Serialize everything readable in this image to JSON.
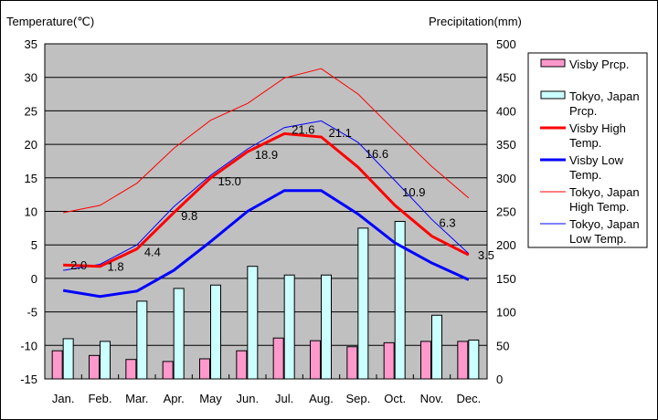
{
  "chart_data": {
    "type": "bar+line",
    "y_left_label": "Temperature(℃)",
    "y_right_label": "Precipitation(mm)",
    "ylim_left": [
      -15,
      35
    ],
    "ylim_right": [
      0,
      500
    ],
    "left_ticks": [
      35,
      30,
      25,
      20,
      15,
      10,
      5,
      0,
      -5,
      -10,
      -15
    ],
    "right_ticks": [
      500,
      450,
      400,
      350,
      300,
      250,
      200,
      150,
      100,
      50,
      0
    ],
    "categories": [
      "Jan.",
      "Feb.",
      "Mar.",
      "Apr.",
      "May",
      "Jun.",
      "Jul.",
      "Aug.",
      "Sep.",
      "Oct.",
      "Nov.",
      "Dec."
    ],
    "bars": [
      {
        "name": "Visby Prcp.",
        "color": "#ff99cc",
        "values": [
          42,
          35,
          29,
          26,
          30,
          42,
          61,
          57,
          48,
          54,
          56,
          56
        ]
      },
      {
        "name": "Tokyo, Japan Prcp.",
        "color": "#ccffff",
        "values": [
          60,
          56,
          116,
          135,
          140,
          168,
          155,
          155,
          225,
          235,
          95,
          58
        ]
      }
    ],
    "lines": [
      {
        "name": "Visby High Temp.",
        "color": "#ff0000",
        "width": 3,
        "values": [
          2.0,
          1.8,
          4.4,
          9.8,
          15.0,
          18.9,
          21.6,
          21.1,
          16.6,
          10.9,
          6.3,
          3.5
        ],
        "labels": [
          "2.0",
          "1.8",
          "4.4",
          "9.8",
          "15.0",
          "18.9",
          "21.6",
          "21.1",
          "16.6",
          "10.9",
          "6.3",
          "3.5"
        ]
      },
      {
        "name": "Visby Low Temp.",
        "color": "#0000ff",
        "width": 3,
        "values": [
          -1.8,
          -2.7,
          -1.9,
          1.2,
          5.5,
          10.0,
          13.1,
          13.1,
          9.6,
          5.3,
          2.3,
          -0.2
        ]
      },
      {
        "name": "Tokyo, Japan High Temp.",
        "color": "#ff0000",
        "width": 1,
        "values": [
          9.8,
          10.9,
          14.2,
          19.4,
          23.6,
          26.1,
          29.9,
          31.3,
          27.5,
          22.0,
          16.7,
          12.0
        ]
      },
      {
        "name": "Tokyo, Japan Low Temp.",
        "color": "#0000ff",
        "width": 1,
        "values": [
          1.2,
          2.1,
          5.0,
          10.7,
          15.4,
          19.3,
          22.5,
          23.5,
          20.3,
          14.6,
          8.8,
          3.7
        ]
      }
    ],
    "legend": [
      {
        "line1": "Visby Prcp.",
        "line2": ""
      },
      {
        "line1": "Tokyo, Japan",
        "line2": "Prcp."
      },
      {
        "line1": "Visby High",
        "line2": "Temp."
      },
      {
        "line1": "Visby Low",
        "line2": "Temp."
      },
      {
        "line1": "Tokyo, Japan",
        "line2": "High Temp."
      },
      {
        "line1": "Tokyo, Japan",
        "line2": "Low Temp."
      }
    ],
    "legend_position": "right",
    "grid": true
  }
}
